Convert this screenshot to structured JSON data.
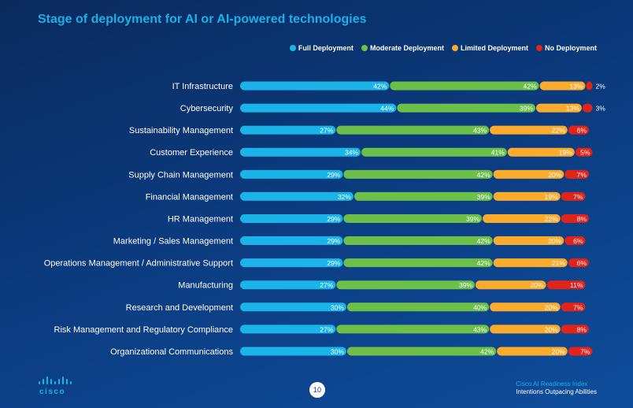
{
  "title": "Stage of deployment for AI or AI-powered technologies",
  "legend": [
    {
      "label": "Full Deployment",
      "color": "#1ab4e8"
    },
    {
      "label": "Moderate Deployment",
      "color": "#6cc04a"
    },
    {
      "label": "Limited Deployment",
      "color": "#fbab2c"
    },
    {
      "label": "No Deployment",
      "color": "#e2231a"
    }
  ],
  "chart_data": {
    "type": "bar",
    "orientation": "horizontal",
    "stacked": true,
    "title": "Stage of deployment for AI or AI-powered technologies",
    "categories": [
      "IT Infrastructure",
      "Cybersecurity",
      "Sustainability Management",
      "Customer Experience",
      "Supply Chain Management",
      "Financial Management",
      "HR Management",
      "Marketing / Sales Management",
      "Operations Management / Administrative Support",
      "Manufacturing",
      "Research and Development",
      "Risk Management and Regulatory Compliance",
      "Organizational Communications"
    ],
    "series": [
      {
        "name": "Full Deployment",
        "color": "#1ab4e8",
        "values": [
          42,
          44,
          27,
          34,
          29,
          32,
          29,
          29,
          29,
          27,
          30,
          27,
          30
        ]
      },
      {
        "name": "Moderate Deployment",
        "color": "#6cc04a",
        "values": [
          42,
          39,
          43,
          41,
          42,
          39,
          39,
          42,
          42,
          39,
          40,
          43,
          42
        ]
      },
      {
        "name": "Limited Deployment",
        "color": "#fbab2c",
        "values": [
          13,
          13,
          22,
          19,
          20,
          19,
          22,
          20,
          21,
          20,
          20,
          20,
          20
        ]
      },
      {
        "name": "No Deployment",
        "color": "#e2231a",
        "values": [
          2,
          3,
          6,
          5,
          7,
          7,
          8,
          6,
          6,
          11,
          7,
          8,
          7
        ]
      }
    ],
    "unit": "%",
    "legend_position": "top-right"
  },
  "footer": {
    "logo_text": "cisco",
    "page_number": "10",
    "line1": "Cisco AI Readiness Index",
    "line2": "Intentions Outpacing Abilities"
  }
}
